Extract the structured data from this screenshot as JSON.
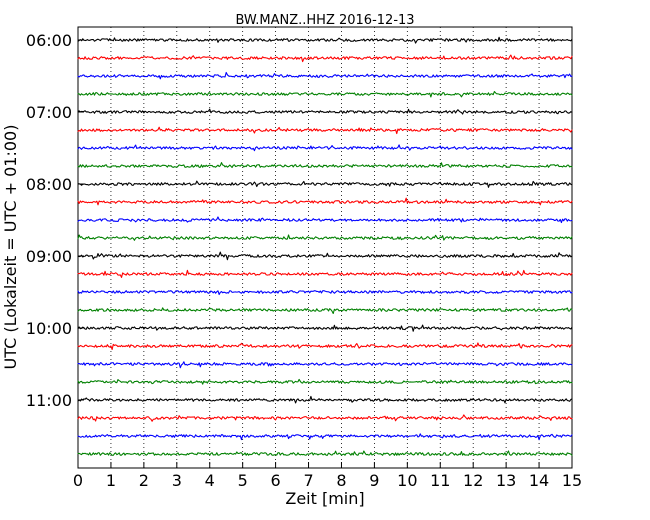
{
  "chart_data": {
    "type": "line",
    "title": "BW.MANZ..HHZ 2016-12-13",
    "xlabel": "Zeit  [min]",
    "ylabel": "UTC (Lokalzeit = UTC + 01:00)",
    "xlim": [
      0,
      15
    ],
    "x_ticks": [
      0,
      1,
      2,
      3,
      4,
      5,
      6,
      7,
      8,
      9,
      10,
      11,
      12,
      13,
      14,
      15
    ],
    "x_tick_labels": [
      "0",
      "1",
      "2",
      "3",
      "4",
      "5",
      "6",
      "7",
      "8",
      "9",
      "10",
      "11",
      "12",
      "13",
      "14",
      "15"
    ],
    "y_tick_labels": [
      "06:00",
      "07:00",
      "08:00",
      "09:00",
      "10:00",
      "11:00"
    ],
    "grid": {
      "x_dotted_at_minutes": [
        1,
        2,
        3,
        4,
        5,
        6,
        7,
        8,
        9,
        10,
        11,
        12,
        13,
        14
      ],
      "y": false
    },
    "traces": [
      {
        "start": "06:00",
        "color": "#000000"
      },
      {
        "start": "06:15",
        "color": "#ff0000"
      },
      {
        "start": "06:30",
        "color": "#0000ff"
      },
      {
        "start": "06:45",
        "color": "#008000"
      },
      {
        "start": "07:00",
        "color": "#000000"
      },
      {
        "start": "07:15",
        "color": "#ff0000"
      },
      {
        "start": "07:30",
        "color": "#0000ff"
      },
      {
        "start": "07:45",
        "color": "#008000"
      },
      {
        "start": "08:00",
        "color": "#000000"
      },
      {
        "start": "08:15",
        "color": "#ff0000"
      },
      {
        "start": "08:30",
        "color": "#0000ff"
      },
      {
        "start": "08:45",
        "color": "#008000"
      },
      {
        "start": "09:00",
        "color": "#000000"
      },
      {
        "start": "09:15",
        "color": "#ff0000"
      },
      {
        "start": "09:30",
        "color": "#0000ff"
      },
      {
        "start": "09:45",
        "color": "#008000"
      },
      {
        "start": "10:00",
        "color": "#000000"
      },
      {
        "start": "10:15",
        "color": "#ff0000"
      },
      {
        "start": "10:30",
        "color": "#0000ff"
      },
      {
        "start": "10:45",
        "color": "#008000"
      },
      {
        "start": "11:00",
        "color": "#000000"
      },
      {
        "start": "11:15",
        "color": "#ff0000"
      },
      {
        "start": "11:30",
        "color": "#0000ff"
      },
      {
        "start": "11:45",
        "color": "#008000"
      }
    ]
  }
}
